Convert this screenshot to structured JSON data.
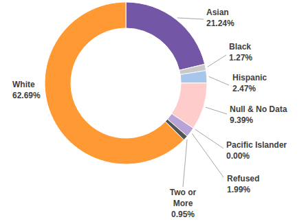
{
  "chart_data": {
    "type": "pie",
    "categories": [
      "Asian",
      "Black",
      "Hispanic",
      "Null & No Data",
      "Pacific Islander",
      "Refused",
      "Two or More",
      "White"
    ],
    "values": [
      21.24,
      1.27,
      2.47,
      9.39,
      0.0,
      1.99,
      0.95,
      62.69
    ],
    "value_labels": [
      "21.24%",
      "1.27%",
      "2.47%",
      "9.39%",
      "0.00%",
      "1.99%",
      "0.95%",
      "62.69%"
    ],
    "colors": [
      "#7357a6",
      "#c9c9c9",
      "#a8c6ec",
      "#ffcccc",
      "#8fb3d9",
      "#b7a3d6",
      "#555555",
      "#ff9933"
    ],
    "data_labels": true
  }
}
